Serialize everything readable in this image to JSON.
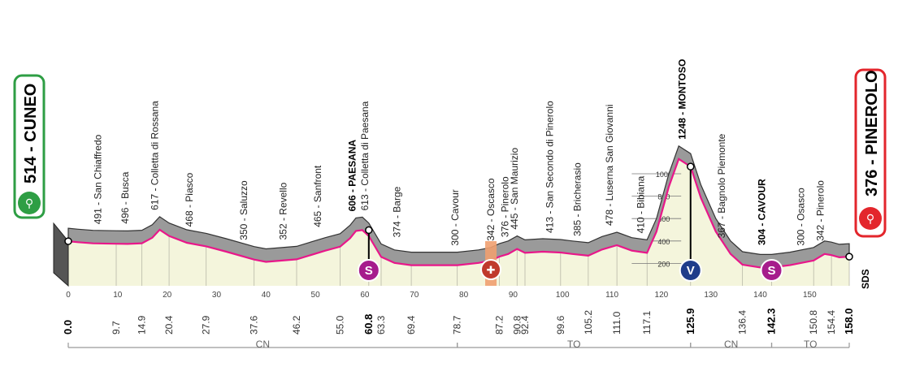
{
  "start": {
    "altitude_name": "514 - CUNEO",
    "km": "0.0"
  },
  "finish": {
    "altitude_name": "376 - PINEROLO",
    "km": "158.0"
  },
  "logo": "SDS",
  "colors": {
    "start_green": "#2e9e44",
    "finish_red": "#e3262c",
    "pink_line": "#e8178a",
    "profile_gray": "#9a9a9a",
    "lower_fill": "#f4f5dc",
    "sprint_purple": "#a61c8c",
    "kom_blue": "#1f3d8a",
    "feed_orange": "#f0a070"
  },
  "chart_data": {
    "type": "area",
    "title": "",
    "xlabel": "",
    "ylabel": "",
    "xlim": [
      0,
      158
    ],
    "ylim": [
      0,
      1300
    ],
    "grid": true,
    "altitude_ticks": [
      200,
      400,
      600,
      800,
      1000
    ],
    "x_ticks": [
      0,
      10,
      20,
      30,
      40,
      50,
      60,
      70,
      80,
      90,
      100,
      110,
      120,
      130,
      140,
      150
    ],
    "x_tick_labels": [
      "0",
      "10",
      "20",
      "30",
      "40",
      "50",
      "60",
      "70",
      "80",
      "90",
      "100",
      "110",
      "120",
      "130",
      "140",
      "150"
    ],
    "profile": [
      [
        0,
        514
      ],
      [
        2,
        505
      ],
      [
        5,
        495
      ],
      [
        9.7,
        491
      ],
      [
        12,
        490
      ],
      [
        14.9,
        496
      ],
      [
        17,
        545
      ],
      [
        18.5,
        617
      ],
      [
        20.4,
        560
      ],
      [
        24,
        500
      ],
      [
        27.9,
        468
      ],
      [
        32,
        420
      ],
      [
        37.6,
        350
      ],
      [
        40,
        330
      ],
      [
        46.2,
        352
      ],
      [
        52,
        430
      ],
      [
        55.0,
        465
      ],
      [
        57,
        540
      ],
      [
        58.2,
        606
      ],
      [
        59.5,
        613
      ],
      [
        60.8,
        560
      ],
      [
        63.3,
        374
      ],
      [
        66,
        320
      ],
      [
        69.4,
        300
      ],
      [
        74,
        300
      ],
      [
        78.7,
        300
      ],
      [
        83,
        320
      ],
      [
        85.5,
        342
      ],
      [
        87.2,
        376
      ],
      [
        89,
        400
      ],
      [
        90.8,
        445
      ],
      [
        92.4,
        410
      ],
      [
        96,
        420
      ],
      [
        99.6,
        413
      ],
      [
        102,
        400
      ],
      [
        105.2,
        385
      ],
      [
        108,
        440
      ],
      [
        111.0,
        478
      ],
      [
        114,
        430
      ],
      [
        117.1,
        410
      ],
      [
        119,
        600
      ],
      [
        121.5,
        1000
      ],
      [
        123.5,
        1248
      ],
      [
        125.9,
        1180
      ],
      [
        128,
        900
      ],
      [
        131,
        600
      ],
      [
        134,
        400
      ],
      [
        136.4,
        304
      ],
      [
        140,
        280
      ],
      [
        142.3,
        280
      ],
      [
        146,
        300
      ],
      [
        150.8,
        342
      ],
      [
        153,
        400
      ],
      [
        154.4,
        390
      ],
      [
        156,
        370
      ],
      [
        158.0,
        376
      ]
    ],
    "locations": [
      {
        "name": "491 - San Chiaffredo",
        "km": 6.0,
        "alt": 491
      },
      {
        "name": "496 - Busca",
        "km": 11.5,
        "alt": 496
      },
      {
        "name": "617 - Colletta di Rossana",
        "km": 17.5,
        "alt": 617
      },
      {
        "name": "468 - Piasco",
        "km": 24.5,
        "alt": 468
      },
      {
        "name": "350 - Saluzzo",
        "km": 35.5,
        "alt": 350
      },
      {
        "name": "352 - Revello",
        "km": 43.5,
        "alt": 352
      },
      {
        "name": "465 - Sanfront",
        "km": 50.5,
        "alt": 465
      },
      {
        "name": "606 - PAESANA",
        "km": 57.5,
        "alt": 606,
        "bold": true
      },
      {
        "name": "613 - Colletta di Paesana",
        "km": 60.0,
        "alt": 613
      },
      {
        "name": "374 - Barge",
        "km": 66.5,
        "alt": 374
      },
      {
        "name": "300 - Cavour",
        "km": 78.3,
        "alt": 300
      },
      {
        "name": "342 - Oscasco",
        "km": 85.5,
        "alt": 342
      },
      {
        "name": "376 - Pinerolo",
        "km": 88.4,
        "alt": 376
      },
      {
        "name": "445 - San Maurizio",
        "km": 90.3,
        "alt": 445
      },
      {
        "name": "413 - San Secondo di Pinerolo",
        "km": 97.4,
        "alt": 413
      },
      {
        "name": "385 - Bricherasio",
        "km": 103.0,
        "alt": 385
      },
      {
        "name": "478 - Luserna San Giovanni",
        "km": 109.5,
        "alt": 478
      },
      {
        "name": "410 - Bibiana",
        "km": 115.8,
        "alt": 410
      },
      {
        "name": "1248 - MONTOSO",
        "km": 124.2,
        "alt": 1248,
        "bold": true
      },
      {
        "name": "367 - Bagnolo Piemonte",
        "km": 132.2,
        "alt": 367
      },
      {
        "name": "304 - CAVOUR",
        "km": 140.3,
        "alt": 304,
        "bold": true
      },
      {
        "name": "300 - Osasco",
        "km": 148.2,
        "alt": 300
      },
      {
        "name": "342 - Pinerolo",
        "km": 152.2,
        "alt": 342
      }
    ],
    "km_markers": [
      {
        "label": "0.0",
        "km": 0,
        "key": true
      },
      {
        "label": "9.7",
        "km": 9.7
      },
      {
        "label": "14.9",
        "km": 14.9
      },
      {
        "label": "20.4",
        "km": 20.4
      },
      {
        "label": "27.9",
        "km": 27.9
      },
      {
        "label": "37.6",
        "km": 37.6
      },
      {
        "label": "46.2",
        "km": 46.2
      },
      {
        "label": "55.0",
        "km": 55.0
      },
      {
        "label": "60.8",
        "km": 60.8,
        "key": true
      },
      {
        "label": "63.3",
        "km": 63.3
      },
      {
        "label": "69.4",
        "km": 69.4
      },
      {
        "label": "78.7",
        "km": 78.7
      },
      {
        "label": "87.2",
        "km": 87.2
      },
      {
        "label": "90.8",
        "km": 90.8
      },
      {
        "label": "92.4",
        "km": 92.4
      },
      {
        "label": "99.6",
        "km": 99.6
      },
      {
        "label": "105.2",
        "km": 105.2
      },
      {
        "label": "111.0",
        "km": 111.0
      },
      {
        "label": "117.1",
        "km": 117.1
      },
      {
        "label": "125.9",
        "km": 125.9,
        "key": true
      },
      {
        "label": "136.4",
        "km": 136.4
      },
      {
        "label": "142.3",
        "km": 142.3,
        "key": true
      },
      {
        "label": "150.8",
        "km": 150.8
      },
      {
        "label": "154.4",
        "km": 154.4
      },
      {
        "label": "158.0",
        "km": 158.0,
        "key": true
      }
    ],
    "points_of_interest": [
      {
        "type": "sprint",
        "label": "S",
        "km": 60.8,
        "alt": 613
      },
      {
        "type": "feed",
        "label": "feed-zone",
        "km": 85.5
      },
      {
        "type": "kom",
        "label": "V",
        "km": 125.9,
        "alt": 1180
      },
      {
        "type": "sprint",
        "label": "S",
        "km": 142.3,
        "alt": 280
      }
    ],
    "regions": [
      {
        "label": "CN",
        "from": 0,
        "to": 78.7
      },
      {
        "label": "TO",
        "from": 78.7,
        "to": 125.9
      },
      {
        "label": "CN",
        "from": 125.9,
        "to": 142.3
      },
      {
        "label": "TO",
        "from": 142.3,
        "to": 158.0
      }
    ]
  }
}
